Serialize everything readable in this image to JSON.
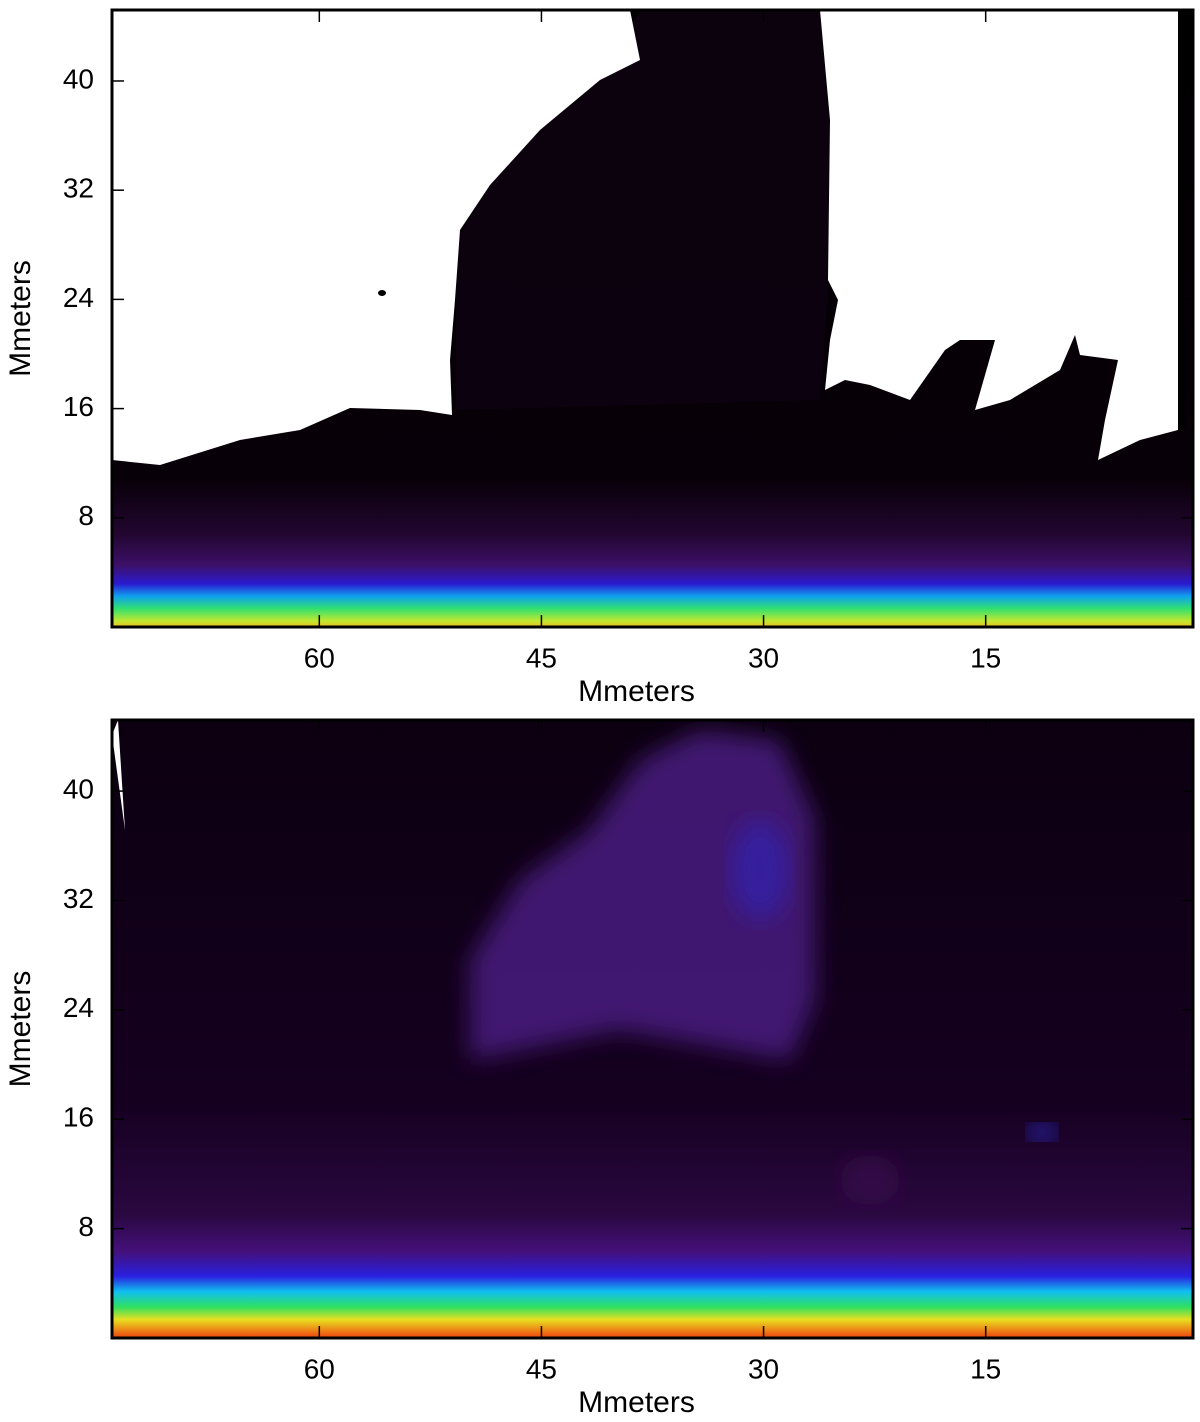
{
  "chart_data": [
    {
      "type": "contour",
      "x_label": "Mmeters",
      "y_label": "Mmeters",
      "xlim": [
        74,
        1
      ],
      "ylim": [
        0,
        45.2
      ],
      "xticks": [
        60,
        45,
        30,
        15
      ],
      "yticks": [
        8,
        16,
        24,
        32,
        40
      ]
    },
    {
      "type": "contour",
      "x_label": "Mmeters",
      "y_label": "Mmeters",
      "xlim": [
        74,
        1
      ],
      "ylim": [
        0,
        45.2
      ],
      "xticks": [
        60,
        45,
        30,
        15
      ],
      "yticks": [
        8,
        16,
        24,
        32,
        40
      ]
    }
  ]
}
